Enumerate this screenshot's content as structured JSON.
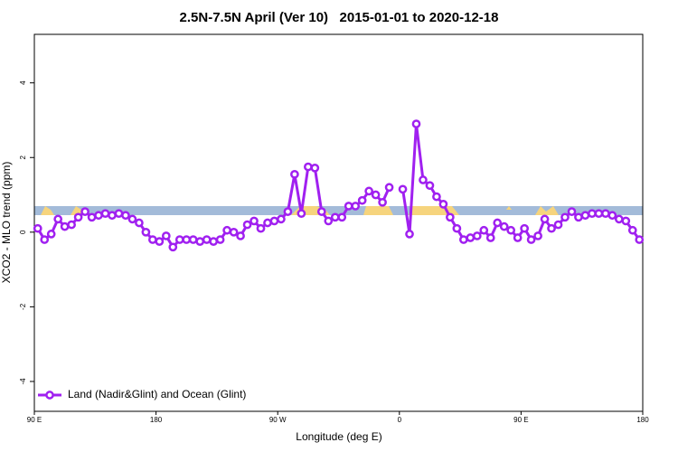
{
  "chart_data": {
    "type": "line",
    "title": "2.5N-7.5N April (Ver 10)   2015-01-01 to 2020-12-18",
    "xlabel": "Longitude (deg E)",
    "ylabel": "XCO2 - MLO trend (ppm)",
    "xlim": [
      90,
      540
    ],
    "ylim": [
      -4.8,
      5.3
    ],
    "xticks": [
      {
        "value": 90,
        "label": "90 E"
      },
      180,
      {
        "value": 270,
        "label": "90 W"
      },
      {
        "value": 360,
        "label": "0"
      },
      {
        "value": 450,
        "label": "90 E"
      },
      {
        "value": 540,
        "label": "180"
      }
    ],
    "yticks": [
      -4,
      -2,
      0,
      2,
      4
    ],
    "legend": "bottom-left",
    "x": [
      92.5,
      97.5,
      102.5,
      107.5,
      112.5,
      117.5,
      122.5,
      127.5,
      132.5,
      137.5,
      142.5,
      147.5,
      152.5,
      157.5,
      162.5,
      167.5,
      172.5,
      177.5,
      182.5,
      187.5,
      192.5,
      197.5,
      202.5,
      207.5,
      212.5,
      217.5,
      222.5,
      227.5,
      232.5,
      237.5,
      242.5,
      247.5,
      252.5,
      257.5,
      262.5,
      267.5,
      272.5,
      277.5,
      282.5,
      287.5,
      292.5,
      297.5,
      302.5,
      307.5,
      312.5,
      317.5,
      322.5,
      327.5,
      332.5,
      337.5,
      342.5,
      347.5,
      352.5,
      357.5,
      362.5,
      367.5,
      372.5,
      377.5,
      382.5,
      387.5,
      392.5,
      397.5,
      402.5,
      407.5,
      412.5,
      417.5,
      422.5,
      427.5,
      432.5,
      437.5,
      442.5,
      447.5,
      452.5,
      457.5,
      462.5,
      467.5,
      472.5,
      477.5,
      482.5,
      487.5,
      492.5,
      497.5,
      502.5,
      507.5,
      512.5,
      517.5,
      522.5,
      527.5,
      532.5,
      537.5
    ],
    "series": [
      {
        "name": "Land (Nadir&Glint) and Ocean (Glint)",
        "color": "#a020f0",
        "values": [
          0.1,
          -0.2,
          -0.05,
          0.35,
          0.15,
          0.2,
          0.4,
          0.55,
          0.4,
          0.45,
          0.5,
          0.45,
          0.5,
          0.45,
          0.35,
          0.25,
          0.0,
          -0.2,
          -0.25,
          -0.1,
          -0.4,
          -0.2,
          -0.2,
          -0.2,
          -0.25,
          -0.2,
          -0.25,
          -0.2,
          0.05,
          0.0,
          -0.1,
          0.2,
          0.3,
          0.1,
          0.25,
          0.3,
          0.35,
          0.55,
          1.55,
          0.5,
          1.75,
          1.72,
          0.55,
          0.3,
          0.4,
          0.4,
          0.7,
          0.7,
          0.85,
          1.1,
          1.0,
          0.8,
          1.2,
          null,
          1.15,
          -0.05,
          2.9,
          1.4,
          1.25,
          0.95,
          0.75,
          0.4,
          0.1,
          -0.2,
          -0.15,
          -0.1,
          0.05,
          -0.15,
          0.25,
          0.15,
          0.05,
          -0.15,
          0.1,
          -0.2,
          -0.1,
          0.35,
          0.1,
          0.2,
          0.4,
          0.55,
          0.4,
          0.45,
          0.5,
          0.5,
          0.5,
          0.45,
          0.35,
          0.3,
          0.05,
          -0.2
        ]
      }
    ]
  }
}
